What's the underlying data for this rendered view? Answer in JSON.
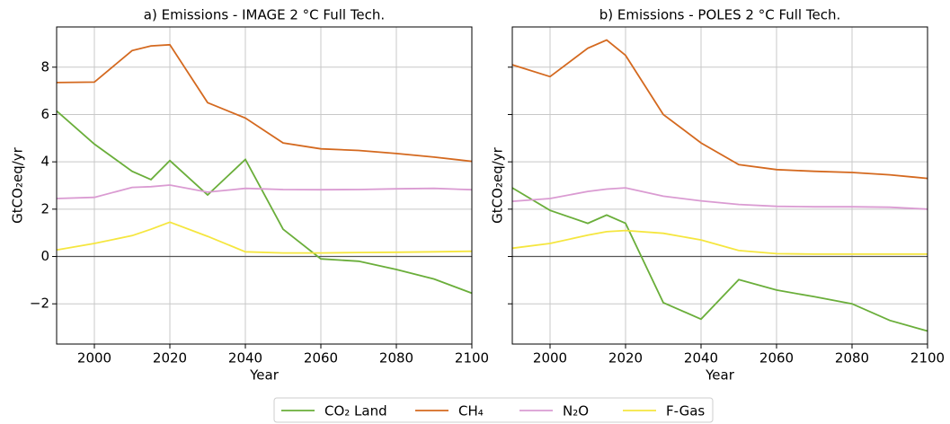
{
  "chart_data": [
    {
      "type": "line",
      "title": "a) Emissions - IMAGE 2 °C Full Tech.",
      "xlabel": "Year",
      "ylabel": "GtCO₂eq/yr",
      "x": [
        1990,
        2000,
        2010,
        2015,
        2020,
        2030,
        2040,
        2050,
        2060,
        2070,
        2080,
        2090,
        2100
      ],
      "xlim": [
        1990,
        2100
      ],
      "xticks": [
        2000,
        2020,
        2040,
        2060,
        2080,
        2100
      ],
      "ylim": [
        -3.7,
        9.7
      ],
      "yticks": [
        {
          "value": -2,
          "label": "−2"
        },
        0,
        2,
        4,
        6,
        8
      ],
      "grid": true,
      "legend": "lower center",
      "series": [
        {
          "name": "CO₂ Land",
          "color": "#6aae3a",
          "values": [
            6.15,
            4.75,
            3.6,
            3.25,
            4.05,
            2.6,
            4.1,
            1.15,
            -0.1,
            -0.2,
            -0.55,
            -0.95,
            -1.55
          ]
        },
        {
          "name": "CH₄",
          "color": "#d4691f",
          "values": [
            7.35,
            7.37,
            8.7,
            8.9,
            8.95,
            6.5,
            5.85,
            4.8,
            4.55,
            4.48,
            4.35,
            4.2,
            4.02
          ]
        },
        {
          "name": "N₂O",
          "color": "#da9bd2",
          "values": [
            2.45,
            2.5,
            2.92,
            2.95,
            3.02,
            2.72,
            2.88,
            2.83,
            2.82,
            2.83,
            2.86,
            2.88,
            2.82
          ]
        },
        {
          "name": "F-Gas",
          "color": "#f5e63f",
          "values": [
            0.28,
            0.55,
            0.88,
            1.15,
            1.45,
            0.85,
            0.2,
            0.15,
            0.15,
            0.17,
            0.18,
            0.2,
            0.22
          ]
        }
      ]
    },
    {
      "type": "line",
      "title": "b) Emissions - POLES 2 °C Full Tech.",
      "xlabel": "Year",
      "ylabel": "GtCO₂eq/yr",
      "x": [
        1990,
        2000,
        2010,
        2015,
        2020,
        2030,
        2040,
        2050,
        2060,
        2070,
        2080,
        2090,
        2100
      ],
      "xlim": [
        1990,
        2100
      ],
      "xticks": [
        2000,
        2020,
        2040,
        2060,
        2080,
        2100
      ],
      "ylim": [
        -3.7,
        9.7
      ],
      "yticks": [
        -2,
        0,
        2,
        4,
        6,
        8
      ],
      "grid": true,
      "series": [
        {
          "color": "#6aae3a",
          "values": [
            2.9,
            1.95,
            1.4,
            1.75,
            1.4,
            -1.95,
            -2.65,
            -0.98,
            -1.42,
            -1.7,
            -2.0,
            -2.7,
            -3.15
          ]
        },
        {
          "color": "#d4691f",
          "values": [
            8.1,
            7.6,
            8.8,
            9.15,
            8.5,
            6.0,
            4.8,
            3.88,
            3.67,
            3.6,
            3.55,
            3.45,
            3.3
          ]
        },
        {
          "color": "#da9bd2",
          "values": [
            2.33,
            2.45,
            2.75,
            2.85,
            2.9,
            2.55,
            2.35,
            2.2,
            2.12,
            2.1,
            2.1,
            2.08,
            2.0
          ]
        },
        {
          "color": "#f5e63f",
          "values": [
            0.35,
            0.55,
            0.9,
            1.05,
            1.1,
            0.98,
            0.7,
            0.25,
            0.12,
            0.1,
            0.1,
            0.1,
            0.1
          ]
        }
      ]
    }
  ]
}
